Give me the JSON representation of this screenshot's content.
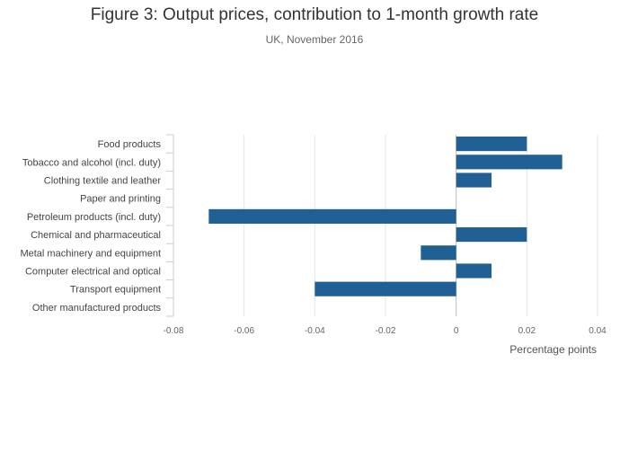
{
  "title": "Figure 3: Output prices, contribution to 1-month growth rate",
  "subtitle": "UK, November 2016",
  "chart_data": {
    "type": "bar",
    "orientation": "horizontal",
    "title": "Figure 3: Output prices, contribution to 1-month growth rate",
    "subtitle": "UK, November 2016",
    "xlabel": "Percentage points",
    "ylabel": "",
    "xlim": [
      -0.08,
      0.04
    ],
    "x_ticks": [
      -0.08,
      -0.06,
      -0.04,
      -0.02,
      0,
      0.02,
      0.04
    ],
    "x_tick_labels": [
      "-0.08",
      "-0.06",
      "-0.04",
      "-0.02",
      "0",
      "0.02",
      "0.04"
    ],
    "grid": "vertical",
    "bar_color": "#206095",
    "categories": [
      "Food products",
      "Tobacco and alcohol (incl. duty)",
      "Clothing textile and leather",
      "Paper and printing",
      "Petroleum products (incl. duty)",
      "Chemical and pharmaceutical",
      "Metal machinery and equipment",
      "Computer electrical and optical",
      "Transport equipment",
      "Other manufactured products"
    ],
    "values": [
      0.02,
      0.03,
      0.01,
      0,
      -0.07,
      0.02,
      -0.01,
      0.01,
      -0.04,
      0
    ]
  }
}
